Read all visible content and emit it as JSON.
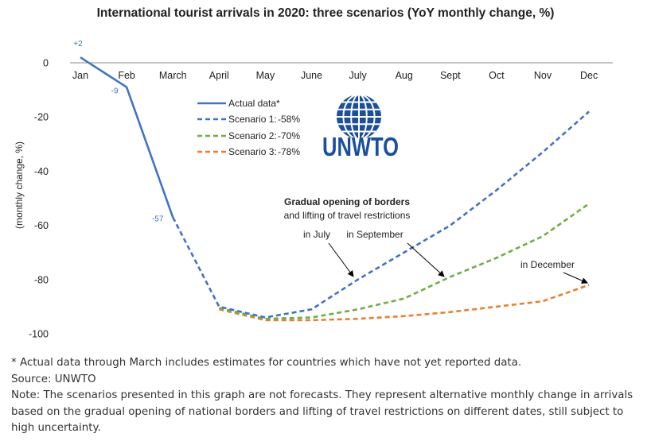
{
  "chart_data": {
    "type": "line",
    "title": "International tourist arrivals in 2020: three scenarios (YoY monthly change, %)",
    "ylabel": "(monthly change, %)",
    "xlabel": "",
    "categories": [
      "Jan",
      "Feb",
      "March",
      "April",
      "May",
      "June",
      "July",
      "Aug",
      "Sept",
      "Oct",
      "Nov",
      "Dec"
    ],
    "ylim": [
      -100,
      0
    ],
    "yticks": [
      "0",
      "-20",
      "-40",
      "-60",
      "-80",
      "-100"
    ],
    "legend_position": "top-center",
    "series": [
      {
        "name": "Actual data*",
        "color": "#4472C4",
        "dashed": false,
        "values": [
          2,
          -9,
          -57,
          null,
          null,
          null,
          null,
          null,
          null,
          null,
          null,
          null
        ]
      },
      {
        "name": "Scenario 1:",
        "total": "-58%",
        "color": "#4472C4",
        "dashed": true,
        "values": [
          null,
          null,
          -57,
          -90,
          -94,
          -91,
          -80,
          -70,
          -60,
          -47,
          -33,
          -18
        ]
      },
      {
        "name": "Scenario 2:",
        "total": "-70%",
        "color": "#70AD47",
        "dashed": true,
        "values": [
          null,
          null,
          null,
          -90.5,
          -94.5,
          -94,
          -91,
          -87,
          -79,
          -72,
          -64,
          -52
        ]
      },
      {
        "name": "Scenario 3:",
        "total": "-78%",
        "color": "#ED7D31",
        "dashed": true,
        "values": [
          null,
          null,
          null,
          -91,
          -95,
          -95,
          -94.5,
          -93.5,
          -92,
          -90,
          -88,
          -82
        ]
      }
    ],
    "data_labels": [
      "+2",
      "-9",
      "-57"
    ],
    "annotations": {
      "heading_line1": "Gradual opening of borders",
      "heading_line2": "and lifting of travel restrictions",
      "july": "in July",
      "september": "in September",
      "december": "in December"
    },
    "logo_text": "UNWTO",
    "grid": false
  },
  "notes": {
    "footnote": "* Actual data through March includes estimates for countries which have not yet reported data.",
    "source": "Source: UNWTO",
    "note": "Note: The scenarios presented in this graph are not forecasts. They represent alternative monthly change in arrivals based on the gradual opening of national borders and lifting of travel restrictions on different dates, still subject to high uncertainty."
  },
  "colors": {
    "logo": "#1B4F9C",
    "text": "#333333"
  }
}
